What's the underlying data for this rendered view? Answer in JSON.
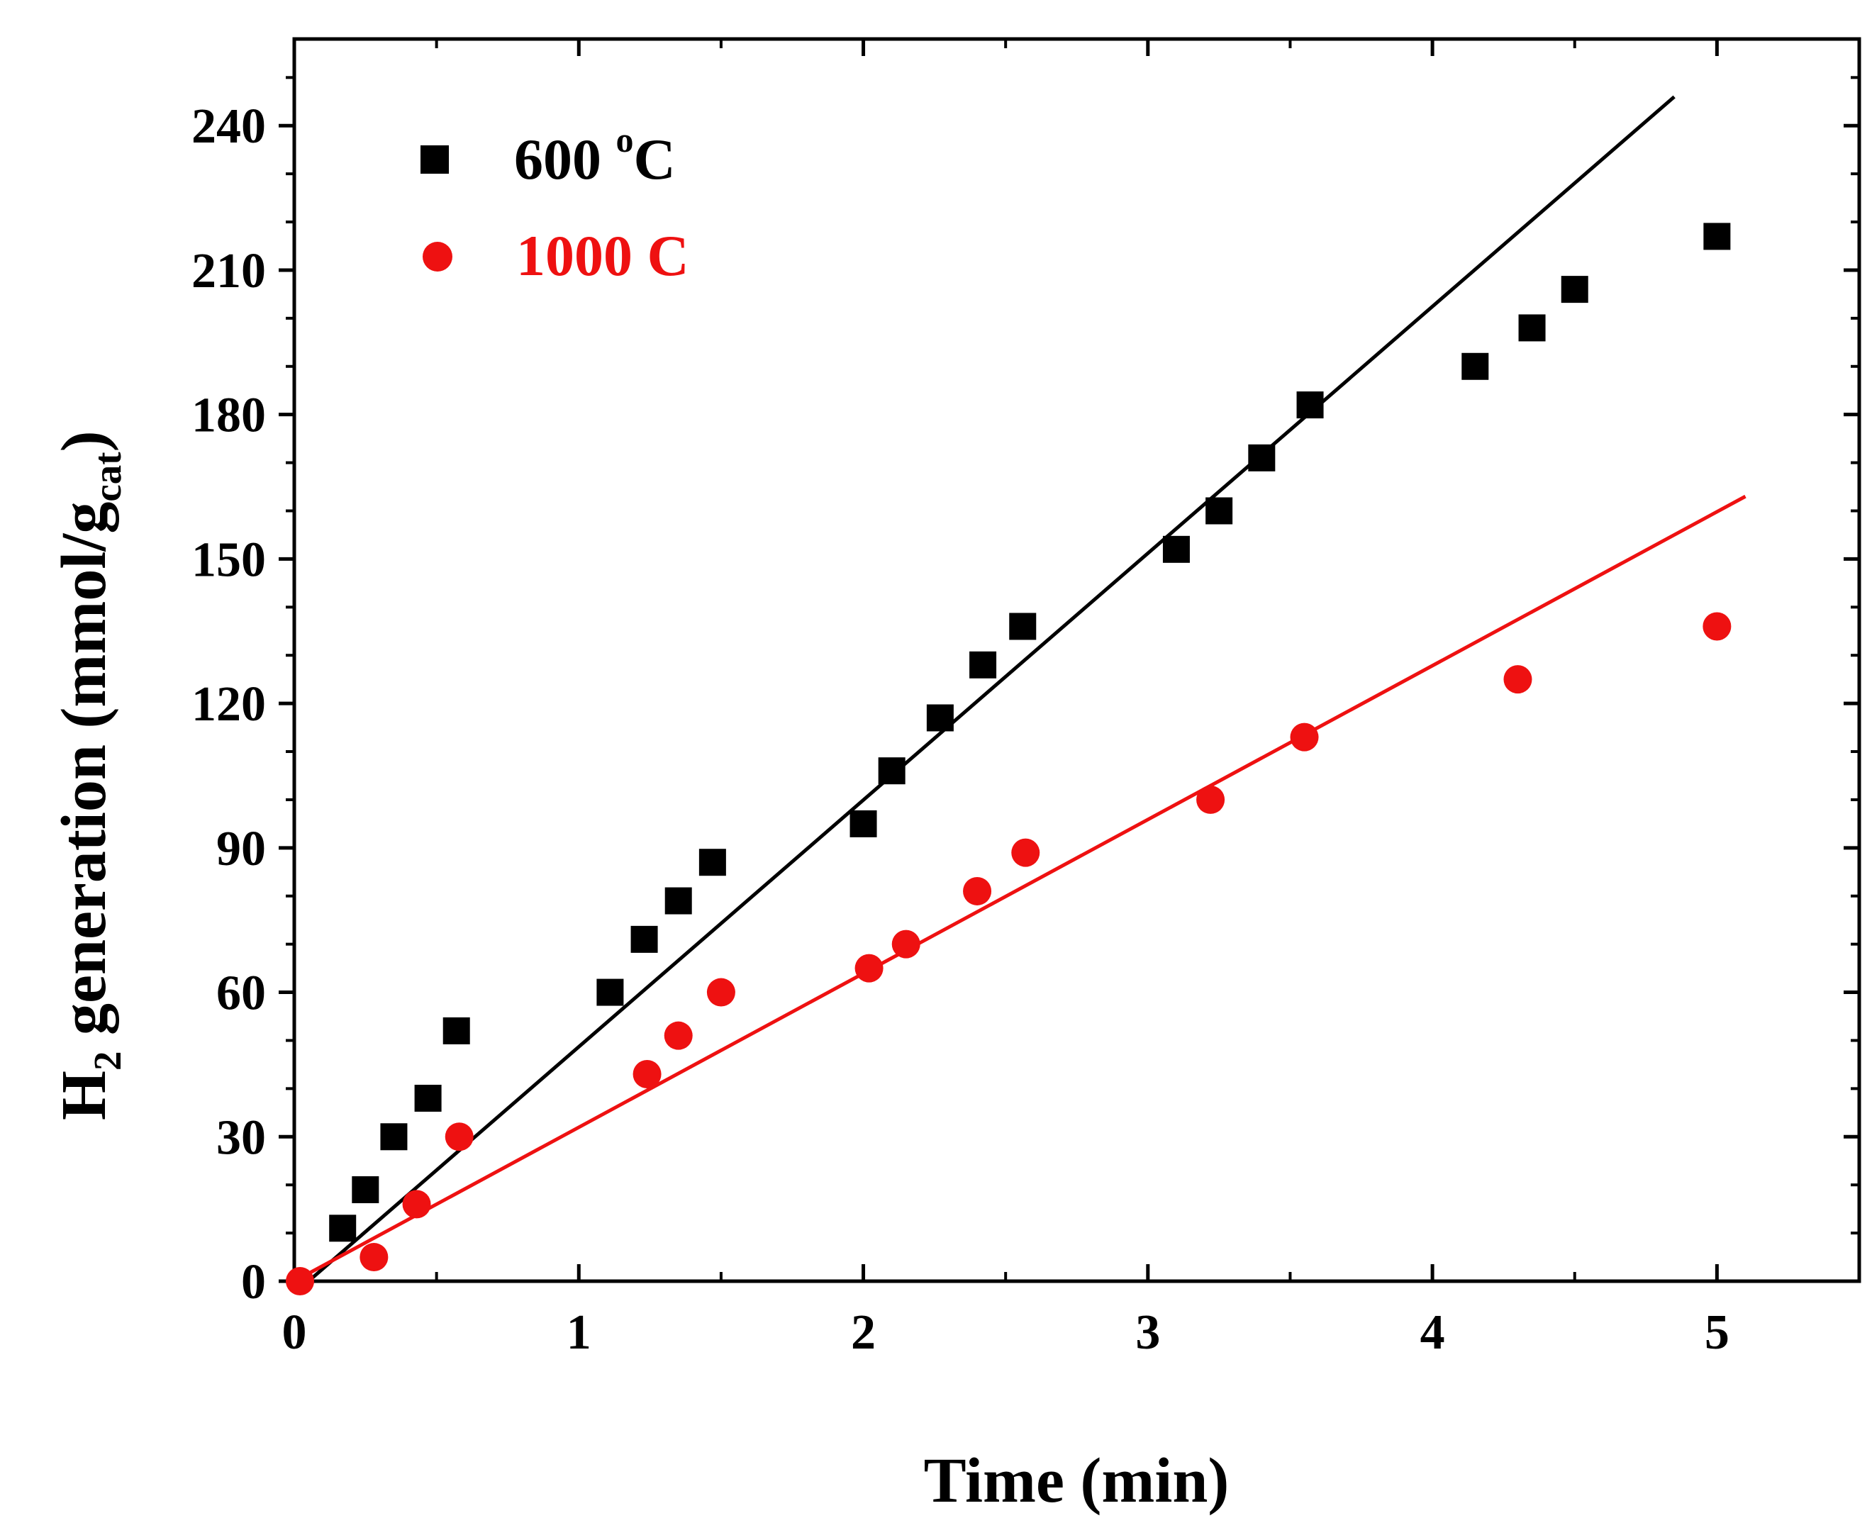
{
  "chart_data": {
    "type": "scatter",
    "xlabel": "Time (min)",
    "ylabel": {
      "main": "H",
      "sub1": "2",
      "middle": " generation (mmol/g",
      "sub2": "cat",
      "end": ")"
    },
    "xlim": [
      0,
      5.5
    ],
    "ylim": [
      0,
      258
    ],
    "x_ticks": [
      0,
      1,
      2,
      3,
      4,
      5
    ],
    "y_ticks": [
      0,
      30,
      60,
      90,
      120,
      150,
      180,
      210,
      240
    ],
    "grid": false,
    "legend_position": "top-left",
    "series": [
      {
        "name": "600 °C",
        "label_main": "600 ",
        "label_sup": "o",
        "label_end": "C",
        "marker": "square",
        "color": "#000000",
        "x": [
          0.17,
          0.25,
          0.35,
          0.47,
          0.57,
          1.11,
          1.23,
          1.35,
          1.47,
          2.0,
          2.1,
          2.27,
          2.42,
          2.56,
          3.1,
          3.25,
          3.4,
          3.57,
          4.15,
          4.35,
          4.5,
          5.0
        ],
        "y": [
          11,
          19,
          30,
          38,
          52,
          60,
          71,
          79,
          87,
          95,
          106,
          117,
          128,
          136,
          152,
          160,
          171,
          182,
          190,
          198,
          206,
          217
        ],
        "fit_line": {
          "x": [
            0.05,
            4.85
          ],
          "y": [
            0,
            246
          ]
        }
      },
      {
        "name": "1000 C",
        "label_main": "1000 C",
        "label_sup": "",
        "label_end": "",
        "marker": "circle",
        "color": "#ee1111",
        "x": [
          0.02,
          0.28,
          0.43,
          0.58,
          1.24,
          1.35,
          1.5,
          2.02,
          2.15,
          2.4,
          2.57,
          3.22,
          3.55,
          4.3,
          5.0
        ],
        "y": [
          0,
          5,
          16,
          30,
          43,
          51,
          60,
          65,
          70,
          81,
          89,
          100,
          113,
          125,
          136
        ],
        "fit_line": {
          "x": [
            0.0,
            5.1
          ],
          "y": [
            0,
            163
          ]
        }
      }
    ]
  }
}
